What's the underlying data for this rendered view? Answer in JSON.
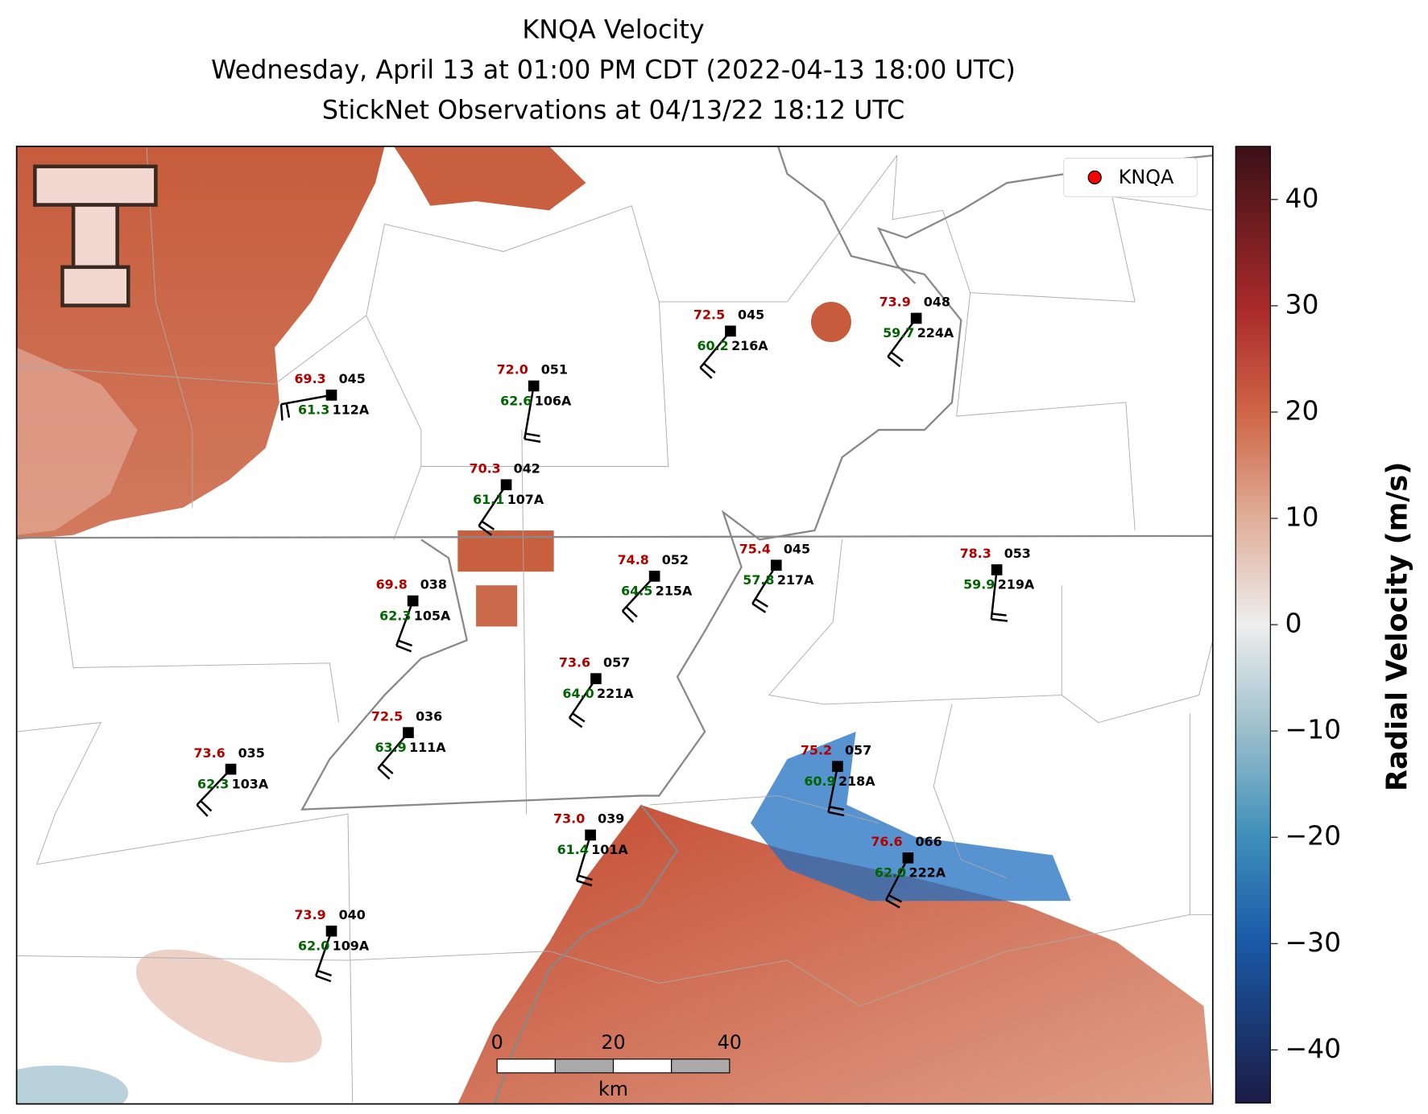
{
  "title": {
    "line1": "KNQA Velocity",
    "line2": "Wednesday, April 13 at 01:00 PM CDT (2022-04-13 18:00 UTC)",
    "line3": "StickNet Observations at 04/13/22 18:12 UTC"
  },
  "legend": {
    "label": "KNQA",
    "color": "#ff0000"
  },
  "stations": [
    {
      "id": "112A",
      "temperature": "69.3",
      "dewpoint": "61.3",
      "wind_dir": "045"
    },
    {
      "id": "106A",
      "temperature": "72.0",
      "dewpoint": "62.6",
      "wind_dir": "051"
    },
    {
      "id": "107A",
      "temperature": "70.3",
      "dewpoint": "61.1",
      "wind_dir": "042"
    },
    {
      "id": "216A",
      "temperature": "72.5",
      "dewpoint": "60.2",
      "wind_dir": "045"
    },
    {
      "id": "224A",
      "temperature": "73.9",
      "dewpoint": "59.7",
      "wind_dir": "048"
    },
    {
      "id": "105A",
      "temperature": "69.8",
      "dewpoint": "62.3",
      "wind_dir": "038"
    },
    {
      "id": "215A",
      "temperature": "74.8",
      "dewpoint": "64.5",
      "wind_dir": "052"
    },
    {
      "id": "217A",
      "temperature": "75.4",
      "dewpoint": "57.8",
      "wind_dir": "045"
    },
    {
      "id": "219A",
      "temperature": "78.3",
      "dewpoint": "59.9",
      "wind_dir": "053"
    },
    {
      "id": "221A",
      "temperature": "73.6",
      "dewpoint": "64.0",
      "wind_dir": "057"
    },
    {
      "id": "111A",
      "temperature": "72.5",
      "dewpoint": "63.9",
      "wind_dir": "036"
    },
    {
      "id": "103A",
      "temperature": "73.6",
      "dewpoint": "62.3",
      "wind_dir": "035"
    },
    {
      "id": "218A",
      "temperature": "75.2",
      "dewpoint": "60.9",
      "wind_dir": "057"
    },
    {
      "id": "101A",
      "temperature": "73.0",
      "dewpoint": "61.4",
      "wind_dir": "039"
    },
    {
      "id": "222A",
      "temperature": "76.6",
      "dewpoint": "62.0",
      "wind_dir": "066"
    },
    {
      "id": "109A",
      "temperature": "73.9",
      "dewpoint": "62.0",
      "wind_dir": "040"
    }
  ],
  "colorbar": {
    "label": "Radial Velocity (m/s)",
    "lim": [
      -45,
      45
    ],
    "ticks": [
      {
        "value": -40,
        "label": "−40"
      },
      {
        "value": -30,
        "label": "−30"
      },
      {
        "value": -20,
        "label": "−20"
      },
      {
        "value": -10,
        "label": "−10"
      },
      0,
      10,
      20,
      30,
      40
    ]
  },
  "scale_bar": {
    "ticks": [
      0,
      20,
      40
    ],
    "unit": "km"
  }
}
